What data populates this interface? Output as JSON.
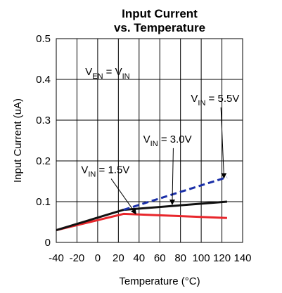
{
  "chart_data": {
    "type": "line",
    "title": [
      "Input Current",
      "vs. Temperature"
    ],
    "xlabel": "Temperature (°C)",
    "ylabel": "Input Current (uA)",
    "xlim": [
      -40,
      140
    ],
    "ylim": [
      0,
      0.5
    ],
    "xticks": [
      -40,
      -20,
      0,
      20,
      40,
      60,
      80,
      100,
      120,
      140
    ],
    "yticks": [
      0,
      0.1,
      0.2,
      0.3,
      0.4,
      0.5
    ],
    "xtick_labels": [
      "-40",
      "-20",
      "0",
      "20",
      "40",
      "60",
      "80",
      "100",
      "120",
      "140"
    ],
    "ytick_labels": [
      "0",
      "0.1",
      "0.2",
      "0.3",
      "0.4",
      "0.5"
    ],
    "grid": true,
    "series": [
      {
        "id": "vin-1-5",
        "color": "#e8262b",
        "dash": false,
        "x": [
          -40,
          25,
          125
        ],
        "y": [
          0.03,
          0.07,
          0.06
        ]
      },
      {
        "id": "vin-3-0",
        "color": "#111111",
        "dash": false,
        "x": [
          -40,
          25,
          125
        ],
        "y": [
          0.03,
          0.08,
          0.1
        ]
      },
      {
        "id": "vin-5-5",
        "color": "#1a2fa8",
        "dash": true,
        "x": [
          25,
          125
        ],
        "y": [
          0.08,
          0.16
        ]
      }
    ],
    "annotations": [
      {
        "id": "ven-eq-vin",
        "parts": [
          [
            "V",
            ""
          ],
          [
            "EN",
            "sub"
          ],
          [
            " = V",
            ""
          ],
          [
            "IN",
            "sub"
          ]
        ],
        "anchor": [
          -12,
          0.41
        ]
      },
      {
        "id": "vin-5-5-label",
        "parts": [
          [
            "V",
            ""
          ],
          [
            "IN",
            "sub"
          ],
          [
            " = 5.5V",
            ""
          ]
        ],
        "anchor": [
          90,
          0.345
        ],
        "arrow_to": [
          122,
          0.158
        ]
      },
      {
        "id": "vin-3-0-label",
        "parts": [
          [
            "V",
            ""
          ],
          [
            "IN",
            "sub"
          ],
          [
            " = 3.0V",
            ""
          ]
        ],
        "anchor": [
          44,
          0.245
        ],
        "arrow_to": [
          72,
          0.093
        ]
      },
      {
        "id": "vin-1-5-label",
        "parts": [
          [
            "V",
            ""
          ],
          [
            "IN",
            "sub"
          ],
          [
            " = 1.5V",
            ""
          ]
        ],
        "anchor": [
          -16,
          0.17
        ],
        "arrow_to": [
          37,
          0.07
        ]
      }
    ]
  }
}
